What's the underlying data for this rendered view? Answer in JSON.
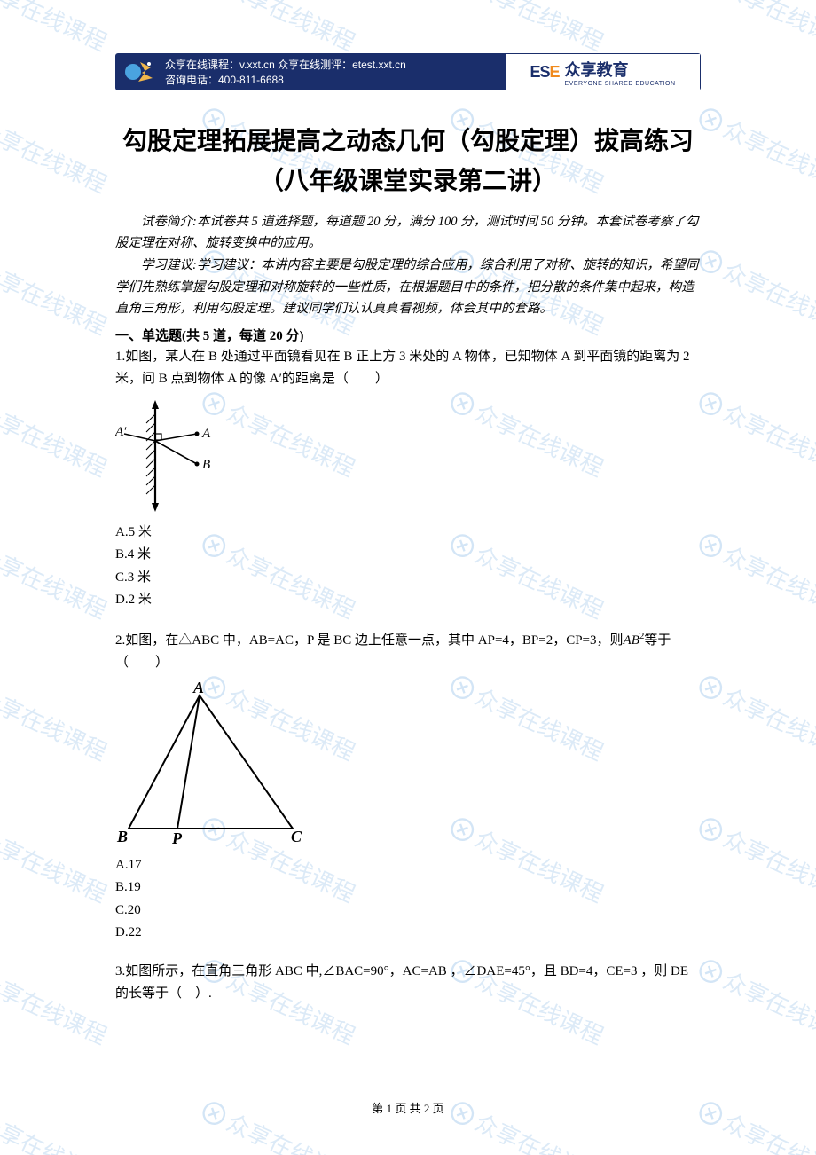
{
  "watermark": {
    "text": "众享在线课程"
  },
  "banner": {
    "line1": "众享在线课程：v.xxt.cn   众享在线测评：etest.xxt.cn",
    "line2": "咨询电话：400-811-6688",
    "logo_ese": "ES",
    "logo_ese_accent": "E",
    "brand_cn": "众享教育",
    "brand_en": "EVERYONE SHARED EDUCATION",
    "bg_color": "#1a2e6b",
    "accent_color": "#f08a1d"
  },
  "title": "勾股定理拓展提高之动态几何（勾股定理）拔高练习（八年级课堂实录第二讲）",
  "intro1": "试卷简介:本试卷共 5 道选择题，每道题 20 分，满分 100 分，测试时间 50 分钟。本套试卷考察了勾股定理在对称、旋转变换中的应用。",
  "intro2": "学习建议:学习建议：本讲内容主要是勾股定理的综合应用，综合利用了对称、旋转的知识，希望同学们先熟练掌握勾股定理和对称旋转的一些性质，在根据题目中的条件，把分散的条件集中起来，构造直角三角形，利用勾股定理。建议同学们认认真真看视频，体会其中的套路。",
  "section_head": "一、单选题(共 5 道，每道 20 分)",
  "q1": {
    "stem": "1.如图，某人在 B 处通过平面镜看见在 B 正上方 3 米处的 A 物体，已知物体 A 到平面镜的距离为 2 米，问 B 点到物体 A 的像 A′的距离是（　　）",
    "labels": {
      "A_prime": "A′",
      "A": "A",
      "B": "B"
    },
    "options": {
      "A": "A.5 米",
      "B": "B.4 米",
      "C": "C.3 米",
      "D": "D.2 米"
    }
  },
  "q2": {
    "stem_pre": "2.如图，在△ABC 中，AB=AC，P 是 BC 边上任意一点，其中 AP=4，BP=2，CP=3，则",
    "stem_var": "AB",
    "stem_exp": "2",
    "stem_post": "等于（　　）",
    "labels": {
      "A": "A",
      "B": "B",
      "P": "P",
      "C": "C"
    },
    "options": {
      "A": "A.17",
      "B": "B.19",
      "C": "C.20",
      "D": "D.22"
    }
  },
  "q3": {
    "stem": "3.如图所示，在直角三角形 ABC 中,∠BAC=90°，AC=AB ，∠DAE=45°，且 BD=4，CE=3 ，则 DE 的长等于（　）."
  },
  "footer": "第 1 页 共 2 页"
}
